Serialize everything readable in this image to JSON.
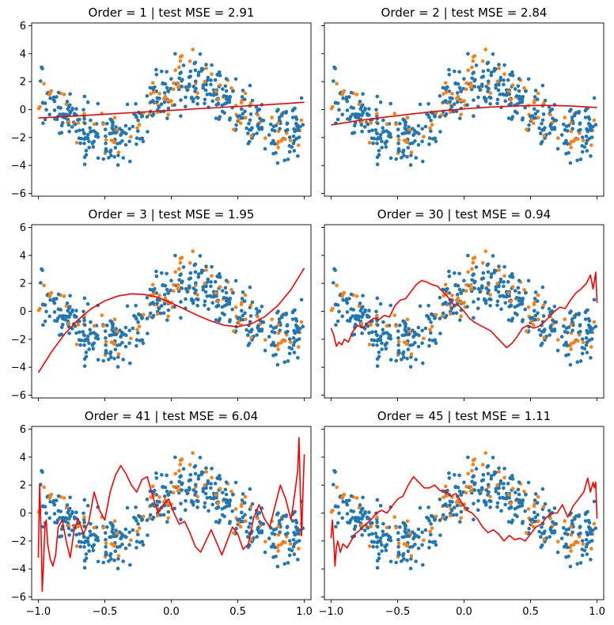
{
  "figure": {
    "type": "polynomial-fit-grid",
    "colors": {
      "train": "#1f77b4",
      "test": "#ff7f0e",
      "fit": "#ff0000"
    }
  },
  "chart_data": [
    {
      "type": "scatter",
      "title": "Order = 1 | test MSE = 2.91",
      "order": 1,
      "test_mse": 2.91,
      "xlim": [
        -1.05,
        1.05
      ],
      "ylim": [
        -6.2,
        6.2
      ],
      "xticks": [
        "−1.0",
        "−0.5",
        "0.0",
        "0.5",
        "1.0"
      ],
      "yticks": [
        "6",
        "4",
        "2",
        "0",
        "−2",
        "−4",
        "−6"
      ],
      "show_xticklabels": false,
      "show_yticklabels": true,
      "fit_curve": {
        "x": [
          -1.0,
          -0.8,
          -0.6,
          -0.4,
          -0.2,
          0.0,
          0.2,
          0.4,
          0.6,
          0.8,
          1.0
        ],
        "y": [
          -0.6,
          -0.5,
          -0.39,
          -0.28,
          -0.17,
          -0.06,
          0.06,
          0.17,
          0.28,
          0.39,
          0.52
        ]
      }
    },
    {
      "type": "scatter",
      "title": "Order = 2 | test MSE = 2.84",
      "order": 2,
      "test_mse": 2.84,
      "xlim": [
        -1.05,
        1.05
      ],
      "ylim": [
        -6.2,
        6.2
      ],
      "xticks": [
        "−1.0",
        "−0.5",
        "0.0",
        "0.5",
        "1.0"
      ],
      "yticks": [
        "6",
        "4",
        "2",
        "0",
        "−2",
        "−4",
        "−6"
      ],
      "show_xticklabels": false,
      "show_yticklabels": false,
      "fit_curve": {
        "x": [
          -1.0,
          -0.8,
          -0.6,
          -0.4,
          -0.2,
          0.0,
          0.2,
          0.4,
          0.6,
          0.8,
          1.0
        ],
        "y": [
          -1.1,
          -0.8,
          -0.55,
          -0.32,
          -0.12,
          0.05,
          0.18,
          0.26,
          0.3,
          0.26,
          0.15
        ]
      }
    },
    {
      "type": "scatter",
      "title": "Order = 3 | test MSE = 1.95",
      "order": 3,
      "test_mse": 1.95,
      "xlim": [
        -1.05,
        1.05
      ],
      "ylim": [
        -6.2,
        6.2
      ],
      "xticks": [
        "−1.0",
        "−0.5",
        "0.0",
        "0.5",
        "1.0"
      ],
      "yticks": [
        "6",
        "4",
        "2",
        "0",
        "−2",
        "−4",
        "−6"
      ],
      "show_xticklabels": false,
      "show_yticklabels": true,
      "fit_curve": {
        "x": [
          -1.0,
          -0.9,
          -0.8,
          -0.7,
          -0.6,
          -0.5,
          -0.4,
          -0.3,
          -0.2,
          -0.1,
          0.0,
          0.1,
          0.2,
          0.3,
          0.4,
          0.5,
          0.6,
          0.7,
          0.8,
          0.9,
          1.0
        ],
        "y": [
          -4.4,
          -2.9,
          -1.6,
          -0.6,
          0.2,
          0.75,
          1.1,
          1.25,
          1.2,
          1.0,
          0.6,
          0.15,
          -0.3,
          -0.7,
          -1.0,
          -1.1,
          -0.9,
          -0.4,
          0.4,
          1.55,
          3.1
        ]
      }
    },
    {
      "type": "scatter",
      "title": "Order = 30 | test MSE = 0.94",
      "order": 30,
      "test_mse": 0.94,
      "xlim": [
        -1.05,
        1.05
      ],
      "ylim": [
        -6.2,
        6.2
      ],
      "xticks": [
        "−1.0",
        "−0.5",
        "0.0",
        "0.5",
        "1.0"
      ],
      "yticks": [
        "6",
        "4",
        "2",
        "0",
        "−2",
        "−4",
        "−6"
      ],
      "show_xticklabels": false,
      "show_yticklabels": false,
      "fit_curve": {
        "x": [
          -1.0,
          -0.98,
          -0.96,
          -0.94,
          -0.92,
          -0.9,
          -0.87,
          -0.84,
          -0.8,
          -0.76,
          -0.72,
          -0.68,
          -0.64,
          -0.6,
          -0.56,
          -0.52,
          -0.48,
          -0.44,
          -0.4,
          -0.36,
          -0.32,
          -0.28,
          -0.24,
          -0.2,
          -0.16,
          -0.12,
          -0.08,
          -0.04,
          0.0,
          0.04,
          0.08,
          0.12,
          0.16,
          0.2,
          0.24,
          0.28,
          0.32,
          0.36,
          0.4,
          0.44,
          0.48,
          0.52,
          0.56,
          0.6,
          0.64,
          0.68,
          0.72,
          0.76,
          0.8,
          0.84,
          0.88,
          0.92,
          0.95,
          0.97,
          0.99,
          1.0
        ],
        "y": [
          -1.2,
          -1.7,
          -2.5,
          -2.2,
          -2.4,
          -2.0,
          -2.2,
          -1.5,
          -1.0,
          -1.2,
          -0.8,
          -0.5,
          -0.6,
          -0.3,
          -0.4,
          0.4,
          0.8,
          0.9,
          1.4,
          1.9,
          2.2,
          2.1,
          1.9,
          1.8,
          1.4,
          1.0,
          0.5,
          0.4,
          0.0,
          -0.5,
          -0.8,
          -1.0,
          -1.2,
          -1.4,
          -1.8,
          -2.2,
          -2.6,
          -2.3,
          -1.8,
          -1.2,
          -1.0,
          -1.2,
          -1.1,
          -0.8,
          -0.4,
          0.0,
          0.3,
          0.2,
          0.8,
          1.3,
          1.6,
          2.0,
          2.6,
          1.6,
          2.8,
          0.6
        ]
      }
    },
    {
      "type": "scatter",
      "title": "Order = 41 | test MSE = 6.04",
      "order": 41,
      "test_mse": 6.04,
      "xlim": [
        -1.05,
        1.05
      ],
      "ylim": [
        -6.2,
        6.2
      ],
      "xticks": [
        "−1.0",
        "−0.5",
        "0.0",
        "0.5",
        "1.0"
      ],
      "yticks": [
        "6",
        "4",
        "2",
        "0",
        "−2",
        "−4",
        "−6"
      ],
      "show_xticklabels": true,
      "show_yticklabels": true,
      "fit_curve": {
        "x": [
          -1.0,
          -0.99,
          -0.98,
          -0.97,
          -0.96,
          -0.95,
          -0.94,
          -0.93,
          -0.91,
          -0.89,
          -0.87,
          -0.85,
          -0.82,
          -0.79,
          -0.76,
          -0.73,
          -0.7,
          -0.66,
          -0.62,
          -0.58,
          -0.54,
          -0.5,
          -0.46,
          -0.42,
          -0.38,
          -0.34,
          -0.3,
          -0.26,
          -0.22,
          -0.18,
          -0.14,
          -0.1,
          -0.06,
          -0.02,
          0.02,
          0.06,
          0.1,
          0.14,
          0.18,
          0.22,
          0.26,
          0.3,
          0.34,
          0.38,
          0.42,
          0.46,
          0.5,
          0.54,
          0.58,
          0.62,
          0.66,
          0.7,
          0.74,
          0.78,
          0.82,
          0.86,
          0.9,
          0.93,
          0.95,
          0.96,
          0.97,
          0.98,
          0.99,
          1.0
        ],
        "y": [
          -3.2,
          2.0,
          -1.0,
          -5.6,
          -3.5,
          -1.0,
          -0.5,
          -2.2,
          -3.3,
          -3.8,
          -3.0,
          -1.0,
          -0.5,
          -2.0,
          -3.2,
          -1.2,
          -0.4,
          -1.5,
          -0.6,
          1.5,
          0.2,
          -0.5,
          1.5,
          2.7,
          3.4,
          2.8,
          2.0,
          1.5,
          2.4,
          2.6,
          1.2,
          0.0,
          0.6,
          1.0,
          0.0,
          -0.8,
          -0.6,
          -1.4,
          -2.4,
          -2.8,
          -2.0,
          -1.2,
          -2.1,
          -3.0,
          -2.0,
          -1.0,
          -1.5,
          -2.6,
          -2.2,
          -0.3,
          0.6,
          -0.4,
          -1.0,
          0.5,
          2.0,
          1.0,
          -0.5,
          1.5,
          3.0,
          5.4,
          1.5,
          -1.6,
          1.5,
          4.2
        ]
      }
    },
    {
      "type": "scatter",
      "title": "Order = 45 | test MSE = 1.11",
      "order": 45,
      "test_mse": 1.11,
      "xlim": [
        -1.05,
        1.05
      ],
      "ylim": [
        -6.2,
        6.2
      ],
      "xticks": [
        "−1.0",
        "−0.5",
        "0.0",
        "0.5",
        "1.0"
      ],
      "yticks": [
        "6",
        "4",
        "2",
        "0",
        "−2",
        "−4",
        "−6"
      ],
      "show_xticklabels": true,
      "show_yticklabels": false,
      "fit_curve": {
        "x": [
          -1.0,
          -0.99,
          -0.98,
          -0.97,
          -0.96,
          -0.95,
          -0.93,
          -0.91,
          -0.88,
          -0.85,
          -0.82,
          -0.78,
          -0.74,
          -0.7,
          -0.66,
          -0.62,
          -0.58,
          -0.54,
          -0.5,
          -0.46,
          -0.42,
          -0.38,
          -0.34,
          -0.3,
          -0.26,
          -0.22,
          -0.18,
          -0.14,
          -0.1,
          -0.06,
          -0.02,
          0.02,
          0.06,
          0.1,
          0.14,
          0.18,
          0.22,
          0.26,
          0.3,
          0.34,
          0.38,
          0.42,
          0.46,
          0.5,
          0.54,
          0.58,
          0.62,
          0.66,
          0.7,
          0.74,
          0.78,
          0.82,
          0.86,
          0.9,
          0.93,
          0.95,
          0.97,
          0.98,
          0.99,
          1.0
        ],
        "y": [
          -1.8,
          -0.5,
          -2.0,
          -3.8,
          -2.5,
          -2.0,
          -2.8,
          -2.2,
          -2.5,
          -2.0,
          -1.5,
          -1.2,
          -0.8,
          -0.5,
          0.0,
          0.2,
          0.0,
          0.5,
          1.0,
          1.2,
          2.0,
          2.6,
          2.2,
          1.8,
          1.8,
          2.0,
          1.6,
          1.6,
          1.2,
          1.4,
          0.8,
          0.2,
          0.0,
          -0.4,
          -1.0,
          -1.4,
          -1.2,
          -1.5,
          -2.0,
          -1.6,
          -1.9,
          -1.8,
          -2.0,
          -1.5,
          -1.0,
          -0.8,
          -0.3,
          0.0,
          0.0,
          0.6,
          -0.3,
          0.5,
          1.0,
          1.5,
          2.5,
          1.5,
          2.2,
          1.8,
          2.2,
          -0.4
        ]
      }
    }
  ]
}
